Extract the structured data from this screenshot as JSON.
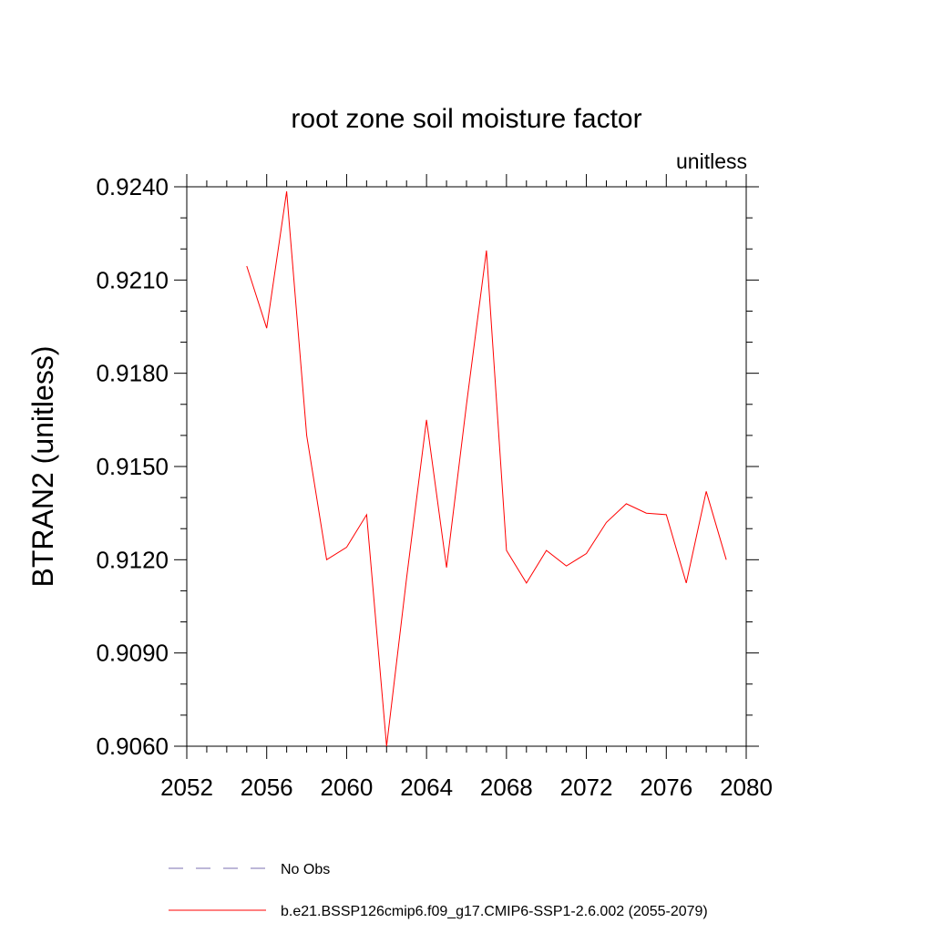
{
  "chart_data": {
    "type": "line",
    "title": "root zone soil moisture factor",
    "units_label": "unitless",
    "xlabel": "",
    "ylabel": "BTRAN2  (unitless)",
    "xlim": [
      2052,
      2080
    ],
    "ylim": [
      0.906,
      0.924
    ],
    "x_ticks": [
      2052,
      2056,
      2060,
      2064,
      2068,
      2072,
      2076,
      2080
    ],
    "x_tick_labels": [
      "2052",
      "2056",
      "2060",
      "2064",
      "2068",
      "2072",
      "2076",
      "2080"
    ],
    "y_ticks": [
      0.906,
      0.909,
      0.912,
      0.915,
      0.918,
      0.921,
      0.924
    ],
    "y_tick_labels": [
      "0.9060",
      "0.9090",
      "0.9120",
      "0.9150",
      "0.9180",
      "0.9210",
      "0.9240"
    ],
    "grid": false,
    "series": [
      {
        "name": "b.e21.BSSP126cmip6.f09_g17.CMIP6-SSP1-2.6.002 (2055-2079)",
        "color": "#ff0000",
        "style": "solid",
        "x": [
          2055,
          2056,
          2057,
          2058,
          2059,
          2060,
          2061,
          2062,
          2063,
          2064,
          2065,
          2066,
          2067,
          2068,
          2069,
          2070,
          2071,
          2072,
          2073,
          2074,
          2075,
          2076,
          2077,
          2078,
          2079
        ],
        "y": [
          0.92145,
          0.91945,
          0.92385,
          0.916,
          0.912,
          0.9124,
          0.91345,
          0.906,
          0.9114,
          0.9165,
          0.91175,
          0.917,
          0.92195,
          0.9123,
          0.91125,
          0.9123,
          0.9118,
          0.9122,
          0.9132,
          0.9138,
          0.9135,
          0.91345,
          0.91125,
          0.9142,
          0.912
        ]
      }
    ],
    "legend": [
      {
        "label": "No Obs",
        "color": "#7b6fb0",
        "style": "dashed"
      },
      {
        "label": "b.e21.BSSP126cmip6.f09_g17.CMIP6-SSP1-2.6.002 (2055-2079)",
        "color": "#ff0000",
        "style": "solid"
      }
    ],
    "legend_position": "bottom"
  }
}
